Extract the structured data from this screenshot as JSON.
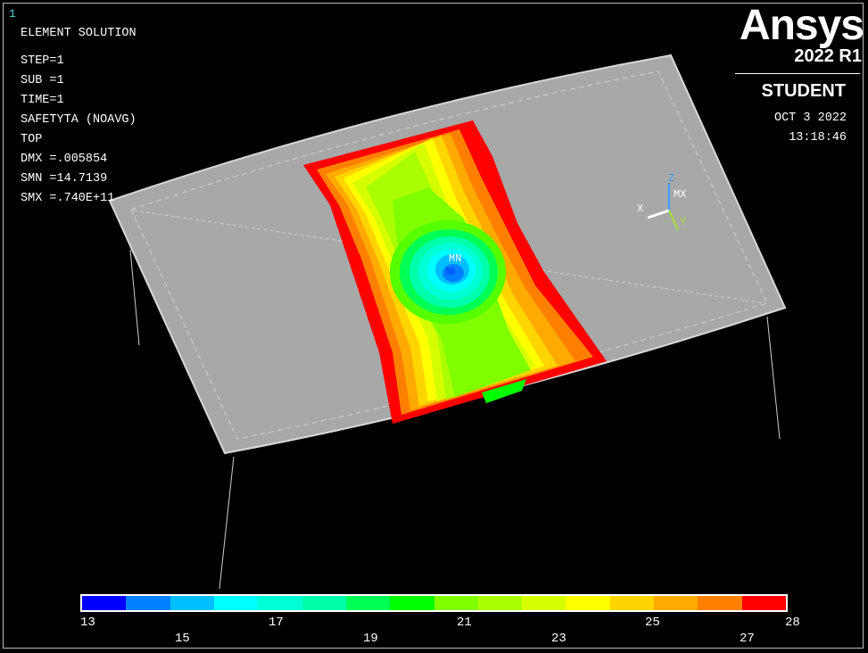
{
  "window_number": "1",
  "info": {
    "title": "ELEMENT SOLUTION",
    "step": "STEP=1",
    "sub": "SUB =1",
    "time": "TIME=1",
    "result": "SAFETYTA (NOAVG)",
    "layer": "TOP",
    "dmx": "DMX =.005854",
    "smn": "SMN =14.7139",
    "smx": "SMX =.740E+11"
  },
  "logo": {
    "word": "Ansys",
    "version": "2022 R1",
    "edition": "STUDENT"
  },
  "datetime": {
    "date": "OCT  3 2022",
    "time": "13:18:46"
  },
  "labels": {
    "min": "MN",
    "max": "MX"
  },
  "triad": {
    "x": "X",
    "y": "Y",
    "z": "Z",
    "x_color": "#ffffff",
    "y_color": "#a6e22e",
    "z_color": "#3aa0ff"
  },
  "legend": {
    "colors": [
      "#0000ff",
      "#0080ff",
      "#00bfff",
      "#00ffff",
      "#00ffd5",
      "#00ffaa",
      "#00ff55",
      "#00ff00",
      "#80ff00",
      "#aaff00",
      "#d5ff00",
      "#ffff00",
      "#ffd500",
      "#ffaa00",
      "#ff8000",
      "#ff0000"
    ],
    "ticks_top": [
      "13",
      "17",
      "21",
      "25",
      "28"
    ],
    "ticks_bottom": [
      "15",
      "19",
      "23",
      "27"
    ]
  },
  "colors": {
    "surface": "#a8a8a8",
    "background": "#000000",
    "text": "#ffffff",
    "window_number": "#4fd6d6"
  }
}
